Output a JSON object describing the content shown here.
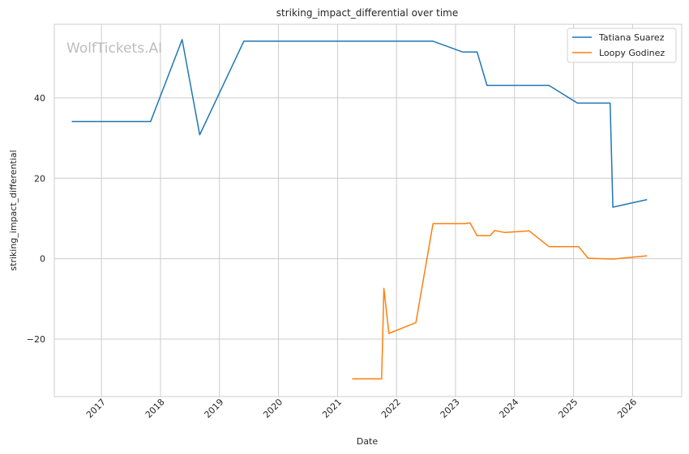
{
  "watermark": "WolfTickets.AI",
  "chart_data": {
    "type": "line",
    "title": "striking_impact_differential over time",
    "xlabel": "Date",
    "ylabel": "striking_impact_differential",
    "x_ticks": [
      "2017",
      "2018",
      "2019",
      "2020",
      "2021",
      "2022",
      "2023",
      "2024",
      "2025",
      "2026"
    ],
    "y_ticks": [
      -20,
      0,
      20,
      40
    ],
    "xlim": [
      "2016-03-15",
      "2026-11-01"
    ],
    "ylim": [
      -34.3,
      58.3
    ],
    "grid": true,
    "legend_position": "top-right",
    "series": [
      {
        "name": "Tatiana Suarez",
        "color": "#1f77b4",
        "points": [
          [
            "2016-07-01",
            34.1
          ],
          [
            "2017-11-01",
            34.1
          ],
          [
            "2018-05-15",
            54.5
          ],
          [
            "2018-09-01",
            30.8
          ],
          [
            "2019-06-01",
            54.1
          ],
          [
            "2022-08-15",
            54.1
          ],
          [
            "2023-02-15",
            51.4
          ],
          [
            "2023-05-15",
            51.4
          ],
          [
            "2023-07-15",
            43.1
          ],
          [
            "2024-08-01",
            43.1
          ],
          [
            "2025-01-25",
            38.7
          ],
          [
            "2025-08-15",
            38.7
          ],
          [
            "2025-09-01",
            12.8
          ],
          [
            "2026-04-01",
            14.7
          ]
        ]
      },
      {
        "name": "Loopy Godinez",
        "color": "#ff7f0e",
        "points": [
          [
            "2021-04-01",
            -29.9
          ],
          [
            "2021-10-01",
            -29.9
          ],
          [
            "2021-10-15",
            -7.4
          ],
          [
            "2021-11-15",
            -18.6
          ],
          [
            "2022-05-01",
            -15.9
          ],
          [
            "2022-08-15",
            8.7
          ],
          [
            "2023-03-01",
            8.7
          ],
          [
            "2023-04-01",
            8.9
          ],
          [
            "2023-05-15",
            5.7
          ],
          [
            "2023-08-01",
            5.7
          ],
          [
            "2023-09-01",
            7.0
          ],
          [
            "2023-11-01",
            6.5
          ],
          [
            "2024-04-01",
            6.9
          ],
          [
            "2024-08-01",
            3.0
          ],
          [
            "2025-02-01",
            3.0
          ],
          [
            "2025-04-01",
            0.1
          ],
          [
            "2025-09-01",
            -0.1
          ],
          [
            "2026-04-01",
            0.7
          ]
        ]
      }
    ]
  }
}
